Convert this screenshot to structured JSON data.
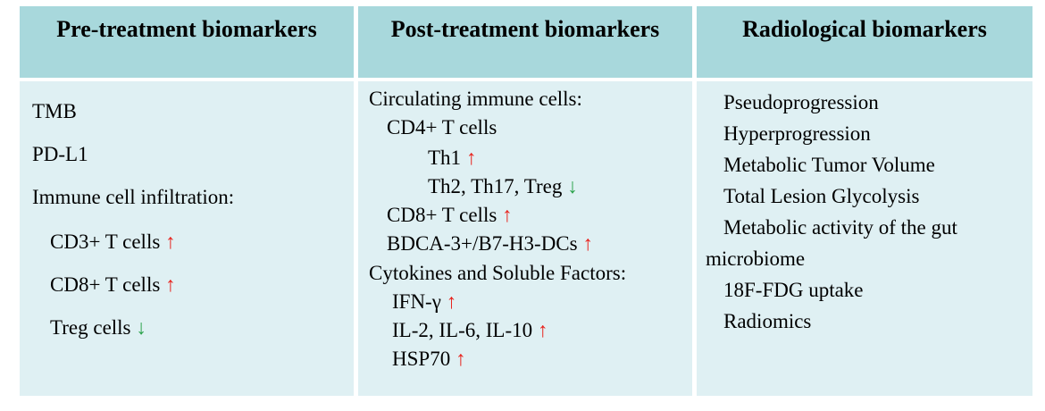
{
  "columns": [
    {
      "header": "Pre-treatment biomarkers",
      "items": [
        {
          "text": "TMB",
          "arrow": ""
        },
        {
          "text": "PD-L1",
          "arrow": ""
        },
        {
          "text": "Immune cell infiltration:",
          "arrow": ""
        },
        {
          "text": "CD3+ T cells ",
          "arrow": "↑"
        },
        {
          "text": "CD8+ T cells ",
          "arrow": "↑"
        },
        {
          "text": "Treg cells ",
          "arrow": "↓"
        }
      ]
    },
    {
      "header": "Post-treatment biomarkers",
      "items": [
        {
          "text": "Circulating immune cells:",
          "arrow": ""
        },
        {
          "text": "CD4+ T cells",
          "arrow": ""
        },
        {
          "text": "Th1 ",
          "arrow": "↑"
        },
        {
          "text": "Th2, Th17, Treg ",
          "arrow": "↓"
        },
        {
          "text": "CD8+ T cells ",
          "arrow": "↑"
        },
        {
          "text": "BDCA-3+/B7-H3-DCs ",
          "arrow": "↑"
        },
        {
          "text": "Cytokines and Soluble Factors:",
          "arrow": ""
        },
        {
          "text": "IFN-γ ",
          "arrow": "↑"
        },
        {
          "text": "IL-2, IL-6, IL-10 ",
          "arrow": "↑"
        },
        {
          "text": "HSP70 ",
          "arrow": "↑"
        }
      ]
    },
    {
      "header": "Radiological biomarkers",
      "items": [
        {
          "text": "Pseudoprogression",
          "arrow": ""
        },
        {
          "text": "Hyperprogression",
          "arrow": ""
        },
        {
          "text": "Metabolic Tumor Volume",
          "arrow": ""
        },
        {
          "text": "Total Lesion Glycolysis",
          "arrow": ""
        },
        {
          "text": "Metabolic activity of the gut",
          "arrow": ""
        },
        {
          "text": "microbiome",
          "arrow": ""
        },
        {
          "text": "18F-FDG uptake",
          "arrow": ""
        },
        {
          "text": "Radiomics",
          "arrow": ""
        }
      ]
    }
  ],
  "colors": {
    "header_bg": "#a8d8dc",
    "body_bg": "#dff0f3",
    "arrow_up": "#e8211b",
    "arrow_down": "#2aa24a"
  }
}
